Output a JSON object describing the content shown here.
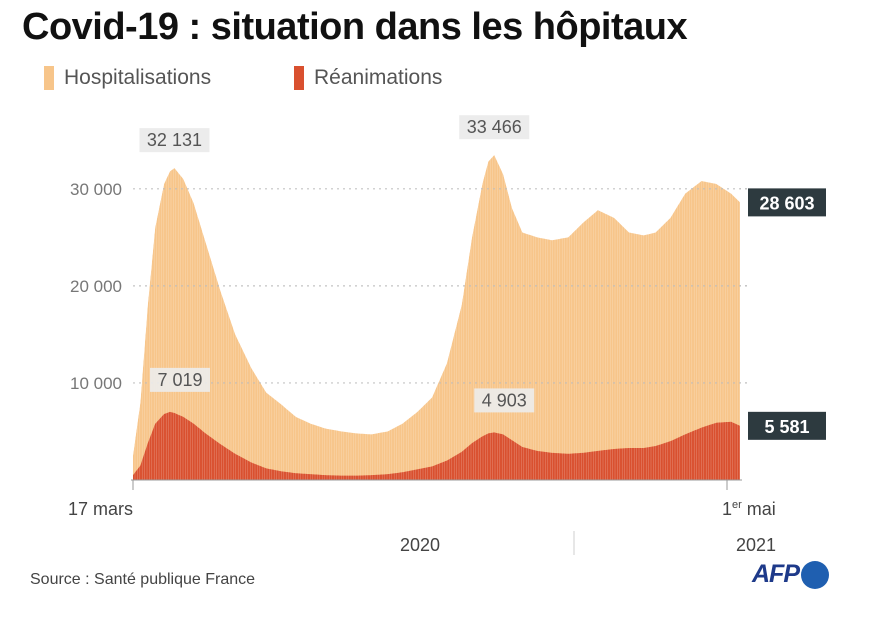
{
  "title": "Covid-19 : situation dans les hôpitaux",
  "source": "Source : Santé publique France",
  "logo_text": "AFP",
  "colors": {
    "hospitalisations": "#f7c58a",
    "reanimations": "#d9502f",
    "label_box": "#2d3a3f",
    "annotation_bg": "#ececec",
    "logo": "#1e3a8a"
  },
  "chart_data": {
    "type": "area",
    "title": "Covid-19 : situation dans les hôpitaux",
    "legend": "top-left",
    "grid": true,
    "ylim": [
      0,
      34000
    ],
    "y_ticks": [
      {
        "value": 10000,
        "label": "10 000"
      },
      {
        "value": 20000,
        "label": "20 000"
      },
      {
        "value": 30000,
        "label": "30 000"
      }
    ],
    "x_start_label": "17 mars",
    "x_end_label": "1",
    "x_end_label_sup": "er",
    "x_end_label_rest": " mai",
    "years": [
      {
        "label": "2020",
        "date": "2020-09-15"
      },
      {
        "label": "2021",
        "date": "2021-04-15"
      }
    ],
    "x": [
      "2020-03-17",
      "2020-03-22",
      "2020-03-27",
      "2020-04-01",
      "2020-04-07",
      "2020-04-11",
      "2020-04-14",
      "2020-04-20",
      "2020-04-27",
      "2020-05-05",
      "2020-05-15",
      "2020-05-25",
      "2020-06-05",
      "2020-06-15",
      "2020-06-25",
      "2020-07-05",
      "2020-07-15",
      "2020-07-25",
      "2020-08-05",
      "2020-08-15",
      "2020-08-25",
      "2020-09-05",
      "2020-09-15",
      "2020-09-25",
      "2020-10-05",
      "2020-10-15",
      "2020-10-25",
      "2020-11-01",
      "2020-11-08",
      "2020-11-12",
      "2020-11-16",
      "2020-11-22",
      "2020-11-28",
      "2020-12-05",
      "2020-12-15",
      "2020-12-25",
      "2021-01-05",
      "2021-01-15",
      "2021-01-25",
      "2021-02-05",
      "2021-02-15",
      "2021-02-25",
      "2021-03-05",
      "2021-03-15",
      "2021-03-25",
      "2021-04-05",
      "2021-04-15",
      "2021-04-25",
      "2021-05-01"
    ],
    "series": [
      {
        "name": "Hospitalisations",
        "values": [
          2500,
          8000,
          18000,
          26000,
          30500,
          31800,
          32131,
          31000,
          28500,
          24500,
          19500,
          15000,
          11500,
          9000,
          7800,
          6500,
          5800,
          5300,
          5000,
          4800,
          4700,
          5000,
          5800,
          7000,
          8500,
          12000,
          18000,
          25000,
          30500,
          32800,
          33466,
          31500,
          28000,
          25500,
          25000,
          24700,
          25000,
          26500,
          27800,
          27000,
          25500,
          25200,
          25500,
          27000,
          29500,
          30800,
          30500,
          29500,
          28603
        ]
      },
      {
        "name": "Réanimations",
        "values": [
          500,
          1500,
          3800,
          5800,
          6800,
          7019,
          6900,
          6500,
          5800,
          4800,
          3700,
          2700,
          1800,
          1200,
          900,
          700,
          600,
          500,
          450,
          450,
          500,
          600,
          800,
          1100,
          1400,
          2000,
          2900,
          3800,
          4500,
          4800,
          4903,
          4700,
          4100,
          3400,
          3000,
          2800,
          2700,
          2800,
          3000,
          3200,
          3300,
          3300,
          3500,
          4000,
          4700,
          5400,
          5900,
          6000,
          5581
        ]
      }
    ],
    "annotations": [
      {
        "series": "Hospitalisations",
        "date": "2020-04-14",
        "value": 32131,
        "label": "32 131"
      },
      {
        "series": "Hospitalisations",
        "date": "2020-11-16",
        "value": 33466,
        "label": "33 466"
      },
      {
        "series": "Réanimations",
        "date": "2020-04-11",
        "value": 7019,
        "label": "7 019"
      },
      {
        "series": "Réanimations",
        "date": "2020-11-16",
        "value": 4903,
        "label": "4 903"
      },
      {
        "series": "Hospitalisations",
        "date": "2021-05-01",
        "value": 28603,
        "label": "28 603",
        "style": "end-box"
      },
      {
        "series": "Réanimations",
        "date": "2021-05-01",
        "value": 5581,
        "label": "5 581",
        "style": "end-box"
      }
    ]
  }
}
